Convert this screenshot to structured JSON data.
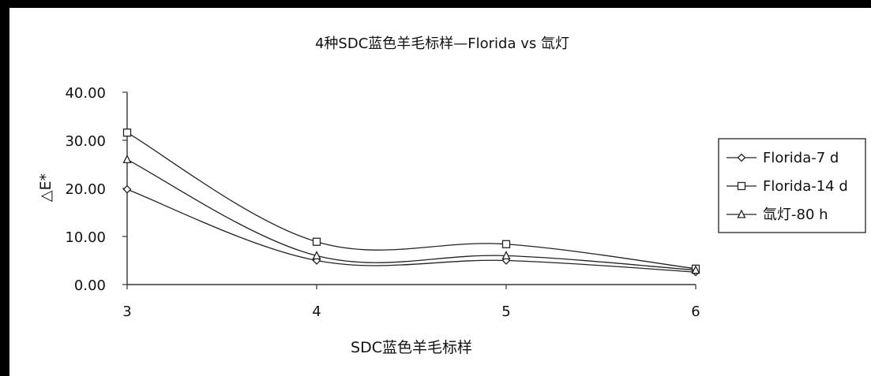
{
  "chart_data": {
    "type": "line",
    "title": "4种SDC蓝色羊毛标样—Florida vs 氙灯",
    "xlabel": "SDC蓝色羊毛标样",
    "ylabel": "△E*",
    "categories": [
      "3",
      "4",
      "5",
      "6"
    ],
    "y_ticks": [
      "0.00",
      "10.00",
      "20.00",
      "30.00",
      "40.00"
    ],
    "ylim": [
      0,
      40
    ],
    "grid": false,
    "smooth": true,
    "legend_position": "right",
    "series": [
      {
        "name": "Florida-7 d",
        "marker": "diamond",
        "values": [
          19.8,
          5.0,
          5.0,
          2.6
        ]
      },
      {
        "name": "Florida-14 d",
        "marker": "square",
        "values": [
          31.6,
          8.9,
          8.4,
          3.3
        ]
      },
      {
        "name": "氙灯-80 h",
        "marker": "triangle",
        "values": [
          26.0,
          6.0,
          6.0,
          3.0
        ]
      }
    ],
    "line_color": "#222222"
  }
}
